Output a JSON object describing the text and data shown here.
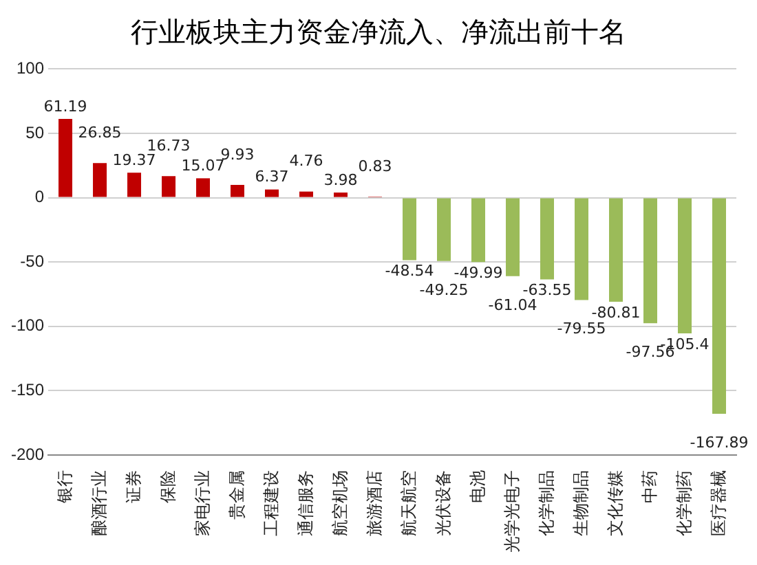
{
  "chart_data": {
    "type": "bar",
    "title": "行业板块主力资金净流入、净流出前十名",
    "categories": [
      "银行",
      "酿酒行业",
      "证券",
      "保险",
      "家电行业",
      "贵金属",
      "工程建设",
      "通信服务",
      "航空机场",
      "旅游酒店",
      "航天航空",
      "光伏设备",
      "电池",
      "光学光电子",
      "化学制品",
      "生物制品",
      "文化传媒",
      "中药",
      "化学制药",
      "医疗器械"
    ],
    "values": [
      61.19,
      26.85,
      19.37,
      16.73,
      15.07,
      9.93,
      6.37,
      4.76,
      3.98,
      0.83,
      -48.54,
      -49.25,
      -49.99,
      -61.04,
      -63.55,
      -79.55,
      -80.81,
      -97.56,
      -105.4,
      -167.89
    ],
    "colors": [
      "#c00000",
      "#c00000",
      "#c00000",
      "#c00000",
      "#c00000",
      "#c00000",
      "#c00000",
      "#c00000",
      "#c00000",
      "#c00000",
      "#9bbb59",
      "#9bbb59",
      "#9bbb59",
      "#9bbb59",
      "#9bbb59",
      "#9bbb59",
      "#9bbb59",
      "#9bbb59",
      "#9bbb59",
      "#9bbb59"
    ],
    "ylim": [
      -200,
      100
    ],
    "yticks": [
      -200,
      -150,
      -100,
      -50,
      0,
      50,
      100
    ],
    "grid": "y",
    "data_labels": true
  }
}
